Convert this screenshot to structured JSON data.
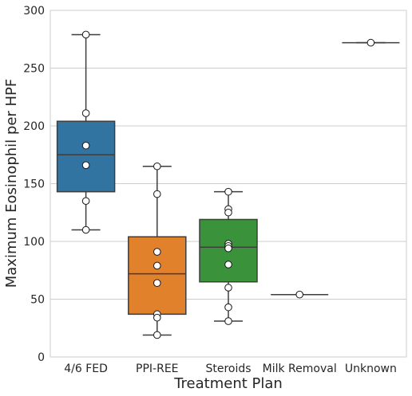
{
  "chart_data": {
    "type": "box",
    "title": "",
    "xlabel": "Treatment Plan",
    "ylabel": "Maximum Eosinophil per HPF",
    "ylim": [
      0,
      300
    ],
    "yticks": [
      0,
      50,
      100,
      150,
      200,
      250,
      300
    ],
    "grid": "horizontal",
    "categories": [
      "4/6 FED",
      "PPI-REE",
      "Steroids",
      "Milk Removal",
      "Unknown"
    ],
    "colors": [
      "#3274a1",
      "#e1812c",
      "#3a923a",
      "#c03d3e",
      "#9372b2"
    ],
    "boxes": [
      {
        "category": "4/6 FED",
        "whisker_low": 110,
        "q1": 143,
        "median": 175,
        "q3": 204,
        "whisker_high": 279
      },
      {
        "category": "PPI-REE",
        "whisker_low": 19,
        "q1": 37,
        "median": 72,
        "q3": 104,
        "whisker_high": 165
      },
      {
        "category": "Steroids",
        "whisker_low": 31,
        "q1": 65,
        "median": 95,
        "q3": 119,
        "whisker_high": 143
      },
      {
        "category": "Milk Removal",
        "whisker_low": 54,
        "q1": 54,
        "median": 54,
        "q3": 54,
        "whisker_high": 54
      },
      {
        "category": "Unknown",
        "whisker_low": 272,
        "q1": 272,
        "median": 272,
        "q3": 272,
        "whisker_high": 272
      }
    ],
    "points": [
      {
        "category": "4/6 FED",
        "values": [
          279,
          211,
          183,
          166,
          135,
          110
        ]
      },
      {
        "category": "PPI-REE",
        "values": [
          165,
          141,
          91,
          79,
          64,
          37,
          34,
          19
        ]
      },
      {
        "category": "Steroids",
        "values": [
          143,
          128,
          125,
          98,
          96,
          94,
          80,
          60,
          43,
          31
        ]
      },
      {
        "category": "Milk Removal",
        "values": [
          54
        ]
      },
      {
        "category": "Unknown",
        "values": [
          272
        ]
      }
    ]
  }
}
